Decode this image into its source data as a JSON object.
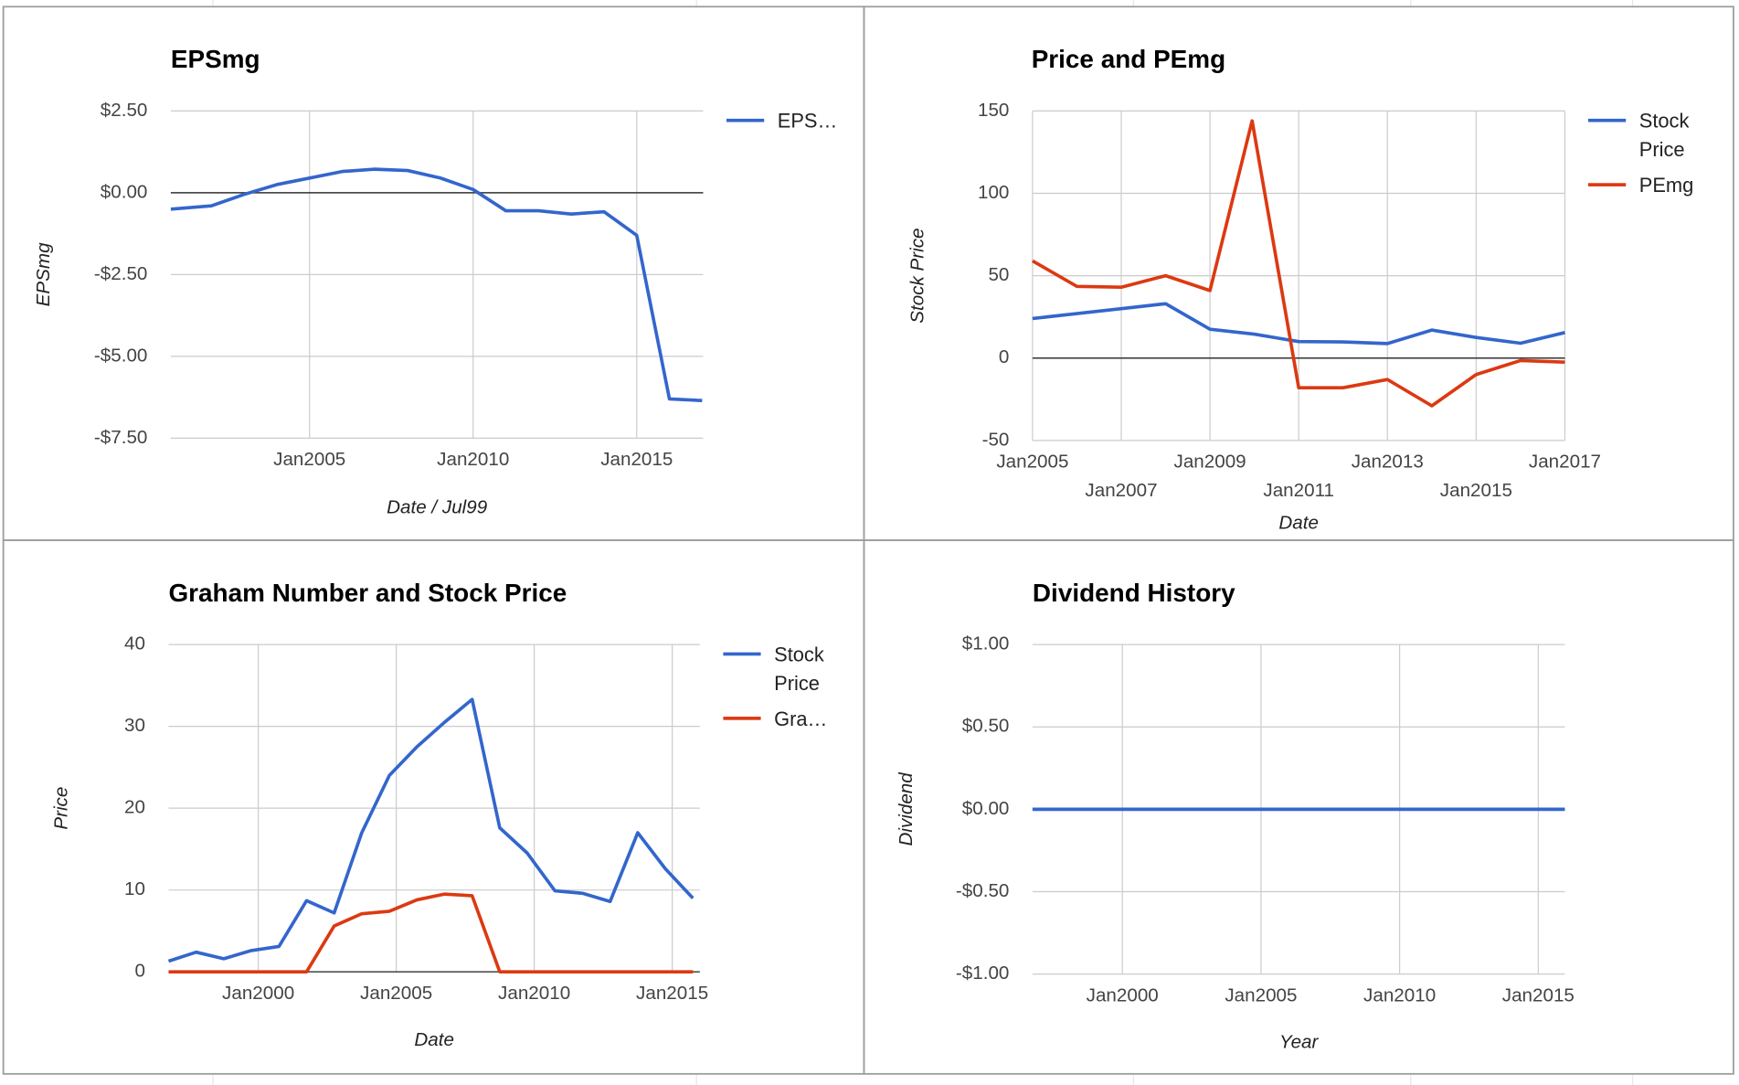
{
  "chart_data": [
    {
      "type": "line",
      "title": "EPSmg",
      "x_label": "Date / Jul99",
      "y_label": "EPSmg",
      "xlim": [
        2000.76,
        2017.03
      ],
      "xticks": [
        {
          "value": 2005,
          "label": "Jan2005"
        },
        {
          "value": 2010,
          "label": "Jan2010"
        },
        {
          "value": 2015,
          "label": "Jan2015"
        }
      ],
      "ylim": [
        -7.5,
        2.5
      ],
      "yticks": [
        {
          "value": -7.5,
          "label": "-$7.50"
        },
        {
          "value": -5,
          "label": "-$5.00"
        },
        {
          "value": -2.5,
          "label": "-$2.50"
        },
        {
          "value": 0,
          "label": "$0.00"
        },
        {
          "value": 2.5,
          "label": "$2.50"
        }
      ],
      "grid": true,
      "legend": "right",
      "series": [
        {
          "name": "EPS…",
          "color": "#3366cc",
          "x": [
            2000.76,
            2002,
            2003,
            2004,
            2005,
            2006,
            2007,
            2008,
            2009,
            2010,
            2011,
            2012,
            2013,
            2014,
            2015,
            2016,
            2017
          ],
          "values": [
            -0.5,
            -0.4,
            -0.05,
            0.25,
            0.45,
            0.65,
            0.72,
            0.68,
            0.45,
            0.1,
            -0.55,
            -0.55,
            -0.65,
            -0.58,
            -1.3,
            -6.3,
            -6.35
          ]
        }
      ]
    },
    {
      "type": "line",
      "title": "Price and PEmg",
      "x_label": "Date",
      "y_label": "Stock Price",
      "xlim": [
        2005,
        2017
      ],
      "xticks": [
        {
          "value": 2005,
          "label": "Jan2005"
        },
        {
          "value": 2007,
          "label": "Jan2007"
        },
        {
          "value": 2009,
          "label": "Jan2009"
        },
        {
          "value": 2011,
          "label": "Jan2011"
        },
        {
          "value": 2013,
          "label": "Jan2013"
        },
        {
          "value": 2015,
          "label": "Jan2015"
        },
        {
          "value": 2017,
          "label": "Jan2017"
        }
      ],
      "ylim": [
        -50,
        150
      ],
      "yticks": [
        -50,
        0,
        50,
        100,
        150
      ],
      "grid": true,
      "legend": "right",
      "series": [
        {
          "name": "Stock Price",
          "color": "#3366cc",
          "x": [
            2005,
            2006,
            2007,
            2008,
            2009,
            2010,
            2011,
            2012,
            2013,
            2014,
            2015,
            2016,
            2017
          ],
          "values": [
            24,
            27,
            30,
            33,
            17.5,
            14.5,
            10,
            9.8,
            8.8,
            17,
            12.5,
            9,
            15.5
          ]
        },
        {
          "name": "PEmg",
          "color": "#dc3912",
          "x": [
            2005,
            2006,
            2007,
            2008,
            2009,
            2009.95,
            2011,
            2012,
            2013,
            2014,
            2015,
            2016,
            2017
          ],
          "values": [
            59,
            43.5,
            43,
            50,
            41,
            144,
            -18,
            -18,
            -13,
            -29,
            -10,
            -1.5,
            -2.5
          ]
        }
      ]
    },
    {
      "type": "line",
      "title": "Graham Number and Stock Price",
      "x_label": "Date",
      "y_label": "Price",
      "xlim": [
        1996.75,
        2016
      ],
      "xticks": [
        {
          "value": 2000,
          "label": "Jan2000"
        },
        {
          "value": 2005,
          "label": "Jan2005"
        },
        {
          "value": 2010,
          "label": "Jan2010"
        },
        {
          "value": 2015,
          "label": "Jan2015"
        }
      ],
      "ylim": [
        0,
        40
      ],
      "yticks": [
        0,
        10,
        20,
        30,
        40
      ],
      "grid": true,
      "legend": "right",
      "series": [
        {
          "name": "Stock Price",
          "color": "#3366cc",
          "x": [
            1996.75,
            1997.75,
            1998.75,
            1999.75,
            2000.75,
            2001.75,
            2002.75,
            2003.75,
            2004.75,
            2005.75,
            2006.75,
            2007.75,
            2008.75,
            2009.75,
            2010.75,
            2011.75,
            2012.75,
            2013.75,
            2014.75,
            2015.75
          ],
          "values": [
            1.3,
            2.4,
            1.6,
            2.6,
            3.1,
            8.7,
            7.2,
            17,
            24,
            27.5,
            30.5,
            33.3,
            17.6,
            14.5,
            9.9,
            9.6,
            8.6,
            17,
            12.6,
            9
          ]
        },
        {
          "name": "Gra…",
          "color": "#dc3912",
          "x": [
            1996.75,
            1997.75,
            1998.75,
            1999.75,
            2000.75,
            2001.75,
            2002.75,
            2003.75,
            2004.75,
            2005.75,
            2006.75,
            2007.75,
            2008.75,
            2009.75,
            2010.75,
            2011.75,
            2012.75,
            2013.75,
            2014.75,
            2015.75
          ],
          "values": [
            0,
            0,
            0,
            0,
            0,
            0,
            5.6,
            7.1,
            7.4,
            8.8,
            9.5,
            9.3,
            0,
            0,
            0,
            0,
            0,
            0,
            0,
            0
          ]
        }
      ]
    },
    {
      "type": "line",
      "title": "Dividend History",
      "x_label": "Year",
      "y_label": "Dividend",
      "xlim": [
        1996.76,
        2015.96
      ],
      "xticks": [
        {
          "value": 2000,
          "label": "Jan2000"
        },
        {
          "value": 2005,
          "label": "Jan2005"
        },
        {
          "value": 2010,
          "label": "Jan2010"
        },
        {
          "value": 2015,
          "label": "Jan2015"
        }
      ],
      "ylim": [
        -1,
        1
      ],
      "yticks": [
        {
          "value": -1,
          "label": "-$1.00"
        },
        {
          "value": -0.5,
          "label": "-$0.50"
        },
        {
          "value": 0,
          "label": "$0.00"
        },
        {
          "value": 0.5,
          "label": "$0.50"
        },
        {
          "value": 1,
          "label": "$1.00"
        }
      ],
      "grid": true,
      "series": [
        {
          "color": "#3366cc",
          "x": [
            1996.76,
            1997.76,
            1998.76,
            1999.76,
            2000.76,
            2001.76,
            2002.76,
            2003.76,
            2004.76,
            2005.76,
            2006.76,
            2007.76,
            2008.76,
            2009.76,
            2010.76,
            2011.76,
            2012.76,
            2013.76,
            2014.76,
            2015.76,
            2015.96
          ],
          "values": [
            0,
            0,
            0,
            0,
            0,
            0,
            0,
            0,
            0,
            0,
            0,
            0,
            0,
            0,
            0,
            0,
            0,
            0,
            0,
            0,
            0
          ]
        }
      ]
    }
  ]
}
